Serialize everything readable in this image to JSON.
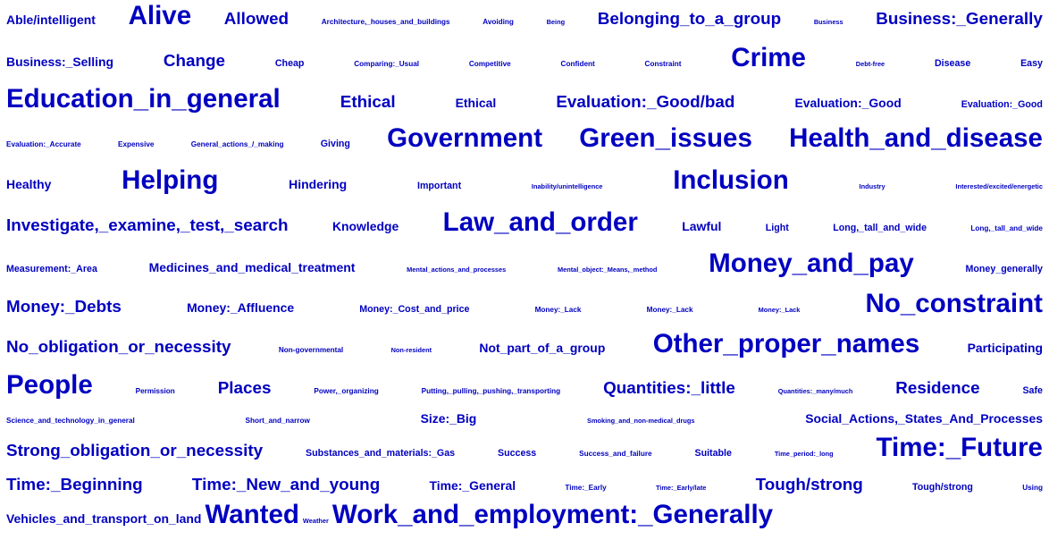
{
  "tag_color": "#0000c0",
  "background": "#ffffff",
  "lines": [
    {
      "words": [
        {
          "text": "Able/intelligent",
          "size": 17
        },
        {
          "text": "Alive",
          "size": 36
        },
        {
          "text": "Allowed",
          "size": 23
        },
        {
          "text": "Architecture,_houses_and_buildings",
          "size": 10
        },
        {
          "text": "Avoiding",
          "size": 10
        },
        {
          "text": "Being",
          "size": 9
        },
        {
          "text": "Belonging_to_a_group",
          "size": 23
        },
        {
          "text": "Business",
          "size": 9
        },
        {
          "text": "Business:_Generally",
          "size": 23
        }
      ]
    },
    {
      "words": [
        {
          "text": "Business:_Selling",
          "size": 17
        },
        {
          "text": "Change",
          "size": 23
        },
        {
          "text": "Cheap",
          "size": 13
        },
        {
          "text": "Comparing:_Usual",
          "size": 10
        },
        {
          "text": "Competitive",
          "size": 10
        },
        {
          "text": "Confident",
          "size": 10
        },
        {
          "text": "Constraint",
          "size": 10
        },
        {
          "text": "Crime",
          "size": 36
        },
        {
          "text": "Debt-free",
          "size": 9
        },
        {
          "text": "Disease",
          "size": 13
        },
        {
          "text": "Easy",
          "size": 13
        }
      ]
    },
    {
      "words": [
        {
          "text": "Education_in_general",
          "size": 36
        },
        {
          "text": "Ethical",
          "size": 23
        },
        {
          "text": "Ethical",
          "size": 17
        },
        {
          "text": "Evaluation:_Good/bad",
          "size": 23
        },
        {
          "text": "Evaluation:_Good",
          "size": 17
        },
        {
          "text": "Evaluation:_Good",
          "size": 13
        }
      ]
    },
    {
      "words": [
        {
          "text": "Evaluation:_Accurate",
          "size": 10
        },
        {
          "text": "Expensive",
          "size": 10
        },
        {
          "text": "General_actions_/_making",
          "size": 10
        },
        {
          "text": "Giving",
          "size": 13
        },
        {
          "text": "Government",
          "size": 36
        },
        {
          "text": "Green_issues",
          "size": 36
        },
        {
          "text": "Health_and_disease",
          "size": 36
        }
      ]
    },
    {
      "words": [
        {
          "text": "Healthy",
          "size": 17
        },
        {
          "text": "Helping",
          "size": 36
        },
        {
          "text": "Hindering",
          "size": 17
        },
        {
          "text": "Important",
          "size": 13
        },
        {
          "text": "Inability/unintelligence",
          "size": 9
        },
        {
          "text": "Inclusion",
          "size": 36
        },
        {
          "text": "Industry",
          "size": 9
        },
        {
          "text": "Interested/excited/energetic",
          "size": 9
        }
      ]
    },
    {
      "words": [
        {
          "text": "Investigate,_examine,_test,_search",
          "size": 23
        },
        {
          "text": "Knowledge",
          "size": 17
        },
        {
          "text": "Law_and_order",
          "size": 36
        },
        {
          "text": "Lawful",
          "size": 17
        },
        {
          "text": "Light",
          "size": 13
        },
        {
          "text": "Long,_tall_and_wide",
          "size": 13
        },
        {
          "text": "Long,_tall_and_wide",
          "size": 10
        }
      ]
    },
    {
      "words": [
        {
          "text": "Measurement:_Area",
          "size": 13
        },
        {
          "text": "Medicines_and_medical_treatment",
          "size": 17
        },
        {
          "text": "Mental_actions_and_processes",
          "size": 9
        },
        {
          "text": "Mental_object:_Means,_method",
          "size": 9
        },
        {
          "text": "Money_and_pay",
          "size": 36
        },
        {
          "text": "Money_generally",
          "size": 13
        }
      ]
    },
    {
      "words": [
        {
          "text": "Money:_Debts",
          "size": 23
        },
        {
          "text": "Money:_Affluence",
          "size": 17
        },
        {
          "text": "Money:_Cost_and_price",
          "size": 13
        },
        {
          "text": "Money:_Lack",
          "size": 10
        },
        {
          "text": "Money:_Lack",
          "size": 10
        },
        {
          "text": "Money:_Lack",
          "size": 9
        },
        {
          "text": "No_constraint",
          "size": 36
        }
      ]
    },
    {
      "words": [
        {
          "text": "No_obligation_or_necessity",
          "size": 23
        },
        {
          "text": "Non-governmental",
          "size": 10
        },
        {
          "text": "Non-resident",
          "size": 9
        },
        {
          "text": "Not_part_of_a_group",
          "size": 17
        },
        {
          "text": "Other_proper_names",
          "size": 36
        },
        {
          "text": "Participating",
          "size": 17
        }
      ]
    },
    {
      "words": [
        {
          "text": "People",
          "size": 36
        },
        {
          "text": "Permission",
          "size": 10
        },
        {
          "text": "Places",
          "size": 23
        },
        {
          "text": "Power,_organizing",
          "size": 10
        },
        {
          "text": "Putting,_pulling,_pushing,_transporting",
          "size": 10
        },
        {
          "text": "Quantities:_little",
          "size": 23
        },
        {
          "text": "Quantities:_many/much",
          "size": 9
        },
        {
          "text": "Residence",
          "size": 23
        },
        {
          "text": "Safe",
          "size": 13
        }
      ]
    },
    {
      "words": [
        {
          "text": "Science_and_technology_in_general",
          "size": 10
        },
        {
          "text": "Short_and_narrow",
          "size": 10
        },
        {
          "text": "Size:_Big",
          "size": 17
        },
        {
          "text": "Smoking_and_non-medical_drugs",
          "size": 9
        },
        {
          "text": "Social_Actions,_States_And_Processes",
          "size": 17
        }
      ]
    },
    {
      "words": [
        {
          "text": "Strong_obligation_or_necessity",
          "size": 23
        },
        {
          "text": "Substances_and_materials:_Gas",
          "size": 13
        },
        {
          "text": "Success",
          "size": 13
        },
        {
          "text": "Success_and_failure",
          "size": 10
        },
        {
          "text": "Suitable",
          "size": 13
        },
        {
          "text": "Time_period:_long",
          "size": 9
        },
        {
          "text": "Time:_Future",
          "size": 36
        }
      ]
    },
    {
      "words": [
        {
          "text": "Time:_Beginning",
          "size": 23
        },
        {
          "text": "Time:_New_and_young",
          "size": 23
        },
        {
          "text": "Time:_General",
          "size": 17
        },
        {
          "text": "Time:_Early",
          "size": 10
        },
        {
          "text": "Time:_Early/late",
          "size": 9
        },
        {
          "text": "Tough/strong",
          "size": 23
        },
        {
          "text": "Tough/strong",
          "size": 13
        },
        {
          "text": "Using",
          "size": 10
        }
      ]
    },
    {
      "packed": true,
      "words": [
        {
          "text": "Vehicles_and_transport_on_land",
          "size": 17
        },
        {
          "text": "Wanted",
          "size": 36
        },
        {
          "text": "Weather",
          "size": 9
        },
        {
          "text": "Work_and_employment:_Generally",
          "size": 36
        }
      ]
    }
  ]
}
